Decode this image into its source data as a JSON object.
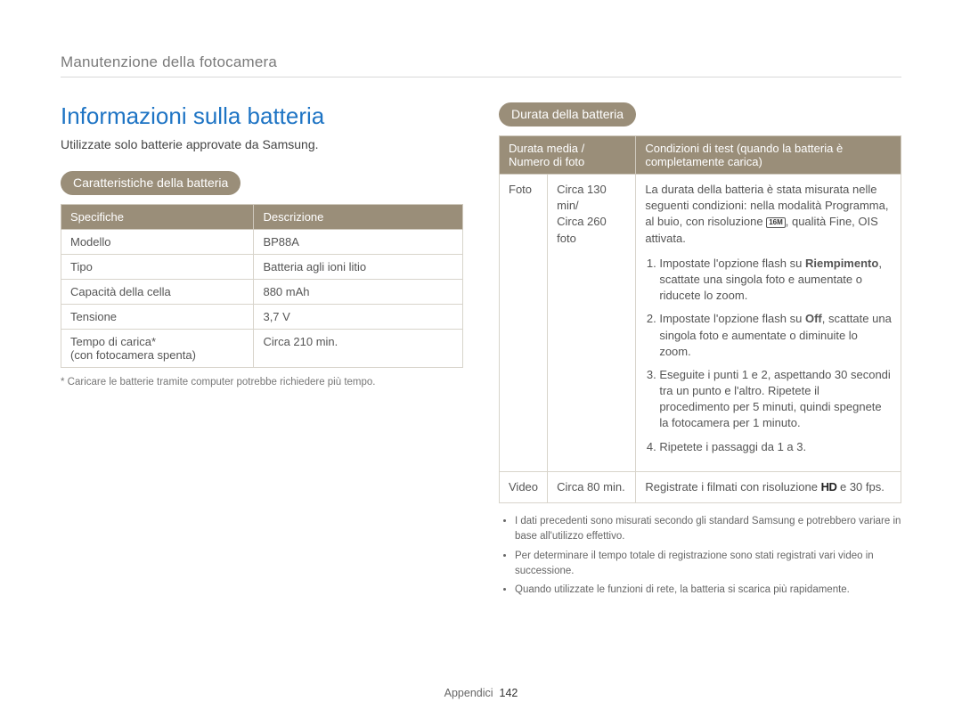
{
  "colors": {
    "accent_blue": "#1e74c4",
    "pill_bg": "#9a8e79",
    "pill_text": "#ffffff",
    "border": "#d8d4cb",
    "text": "#3c3c3c",
    "muted": "#777777",
    "hr": "#d8d8d8",
    "background": "#ffffff"
  },
  "typography": {
    "title_fontsize_pt": 20,
    "body_fontsize_pt": 10,
    "footnote_fontsize_pt": 8.5,
    "font_family": "Arial"
  },
  "breadcrumb": "Manutenzione della fotocamera",
  "left": {
    "title": "Informazioni sulla batteria",
    "intro": "Utilizzate solo batterie approvate da Samsung.",
    "pill": "Caratteristiche della batteria",
    "table": {
      "headers": [
        "Specifiche",
        "Descrizione"
      ],
      "col_widths_pct": [
        48,
        52
      ],
      "rows": [
        [
          "Modello",
          "BP88A"
        ],
        [
          "Tipo",
          "Batteria agli ioni litio"
        ],
        [
          "Capacità della cella",
          "880 mAh"
        ],
        [
          "Tensione",
          "3,7 V"
        ],
        [
          "Tempo di carica*\n(con fotocamera spenta)",
          "Circa 210 min."
        ]
      ]
    },
    "footnote": "* Caricare le batterie tramite computer potrebbe richiedere più tempo."
  },
  "right": {
    "pill": "Durata della batteria",
    "table": {
      "headers": [
        "Durata media /\nNumero di foto",
        "Condizioni di test (quando la batteria è completamente carica)"
      ],
      "col1_span_label": "",
      "col_widths_pct": [
        10,
        24,
        66
      ],
      "rows": [
        {
          "mode": "Foto",
          "duration": "Circa 130 min/\nCirca 260 foto",
          "conditions": {
            "intro_pre": "La durata della batteria è stata misurata nelle seguenti condizioni: nella modalità Programma, al buio, con risoluzione ",
            "intro_icon": "16M",
            "intro_post": ", qualità Fine, OIS attivata.",
            "steps": [
              {
                "pre": "Impostate l'opzione flash su ",
                "bold": "Riempimento",
                "post": ", scattate una singola foto e aumentate o riducete lo zoom."
              },
              {
                "pre": "Impostate l'opzione flash su ",
                "bold": "Off",
                "post": ", scattate una singola foto e aumentate o diminuite lo zoom."
              },
              {
                "text": "Eseguite i punti 1 e 2, aspettando 30 secondi tra un punto e l'altro. Ripetete il procedimento per 5 minuti, quindi spegnete la fotocamera per 1 minuto."
              },
              {
                "text": "Ripetete i passaggi da 1 a 3."
              }
            ]
          }
        },
        {
          "mode": "Video",
          "duration": "Circa 80 min.",
          "conditions_video_pre": "Registrate i filmati con risoluzione ",
          "conditions_video_icon": "HD",
          "conditions_video_post": " e 30 fps."
        }
      ]
    },
    "bullets": [
      "I dati precedenti sono misurati secondo gli standard Samsung e potrebbero variare in base all'utilizzo effettivo.",
      "Per determinare il tempo totale di registrazione sono stati registrati vari video in successione.",
      "Quando utilizzate le funzioni di rete, la batteria si scarica più rapidamente."
    ]
  },
  "footer": {
    "label": "Appendici",
    "page": "142"
  }
}
